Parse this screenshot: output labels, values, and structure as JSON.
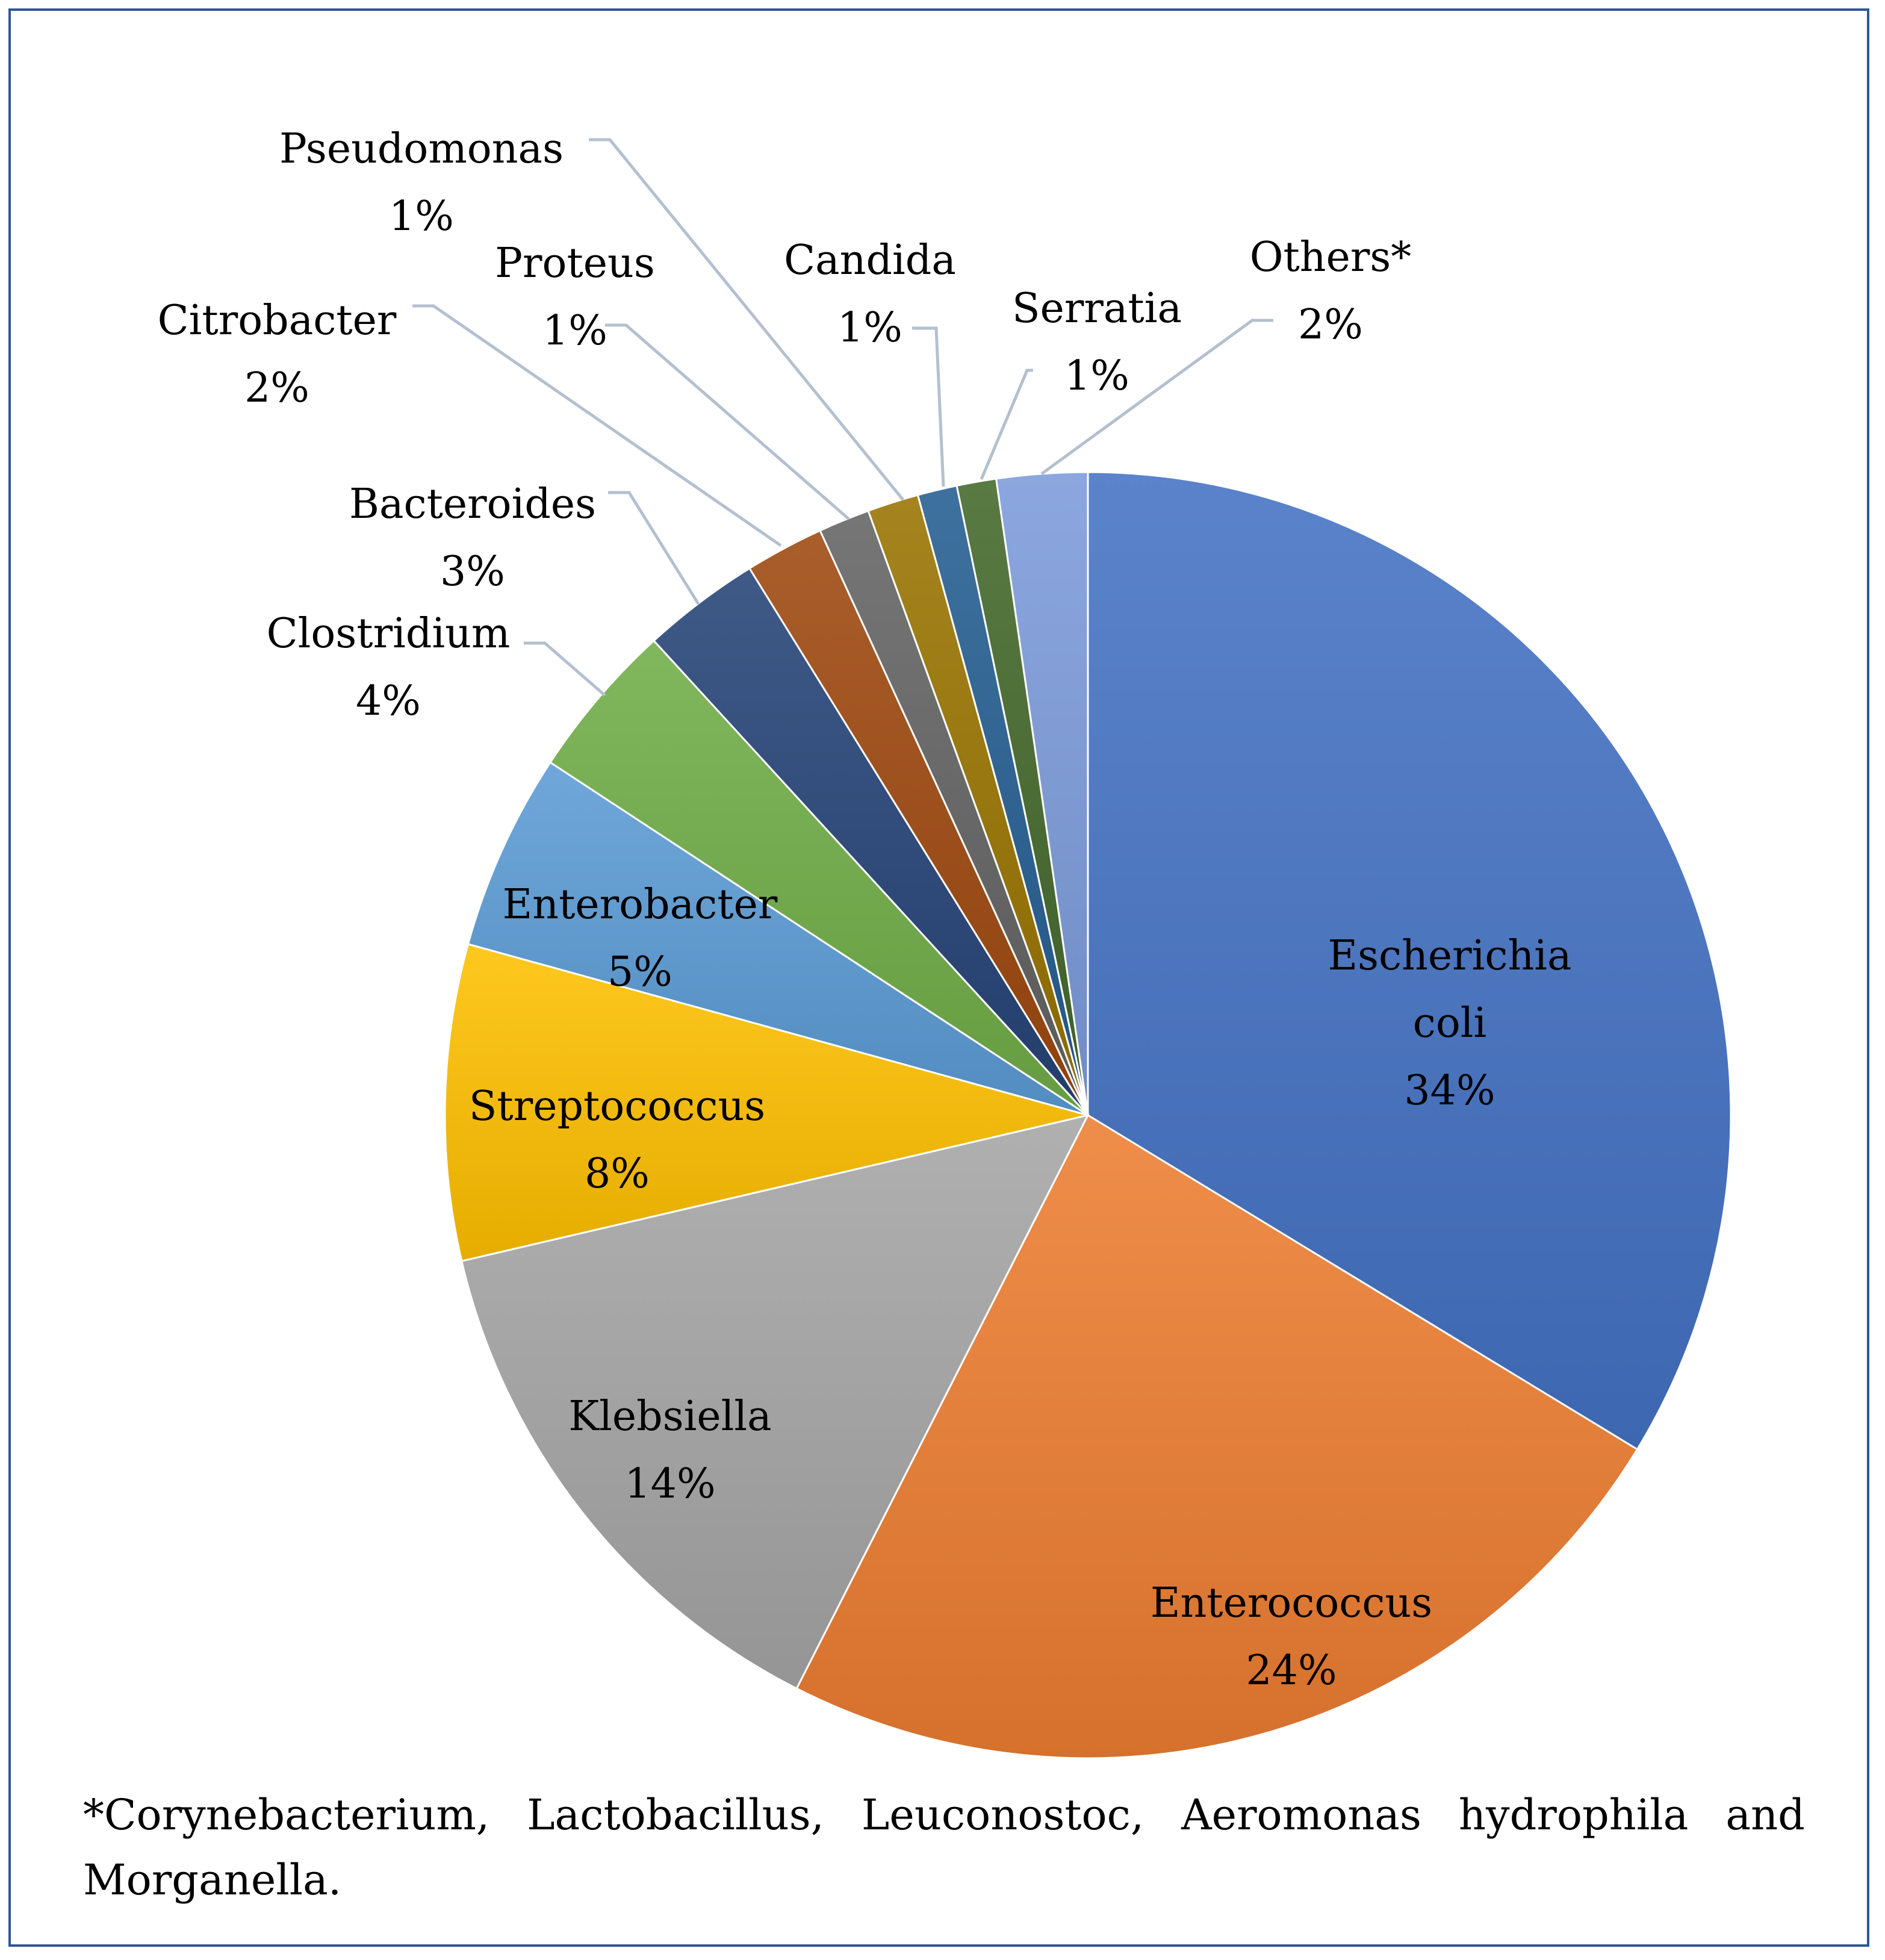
{
  "chart_data": {
    "type": "pie",
    "slices": [
      {
        "label": "Escherichia coli",
        "label_lines": [
          "Escherichia",
          "coli"
        ],
        "value": 34,
        "pct_text": "34%",
        "color": "#4472C4"
      },
      {
        "label": "Enterococcus",
        "label_lines": [
          "Enterococcus"
        ],
        "value": 24,
        "pct_text": "24%",
        "color": "#ED7D31"
      },
      {
        "label": "Klebsiella",
        "label_lines": [
          "Klebsiella"
        ],
        "value": 14,
        "pct_text": "14%",
        "color": "#A5A5A5"
      },
      {
        "label": "Streptococcus",
        "label_lines": [
          "Streptococcus"
        ],
        "value": 8,
        "pct_text": "8%",
        "color": "#FFC000"
      },
      {
        "label": "Enterobacter",
        "label_lines": [
          "Enterobacter"
        ],
        "value": 5,
        "pct_text": "5%",
        "color": "#5B9BD5"
      },
      {
        "label": "Clostridium",
        "label_lines": [
          "Clostridium"
        ],
        "value": 4,
        "pct_text": "4%",
        "color": "#70AD47"
      },
      {
        "label": "Bacteroides",
        "label_lines": [
          "Bacteroides"
        ],
        "value": 3,
        "pct_text": "3%",
        "color": "#264478"
      },
      {
        "label": "Citrobacter",
        "label_lines": [
          "Citrobacter"
        ],
        "value": 2,
        "pct_text": "2%",
        "color": "#9E480E"
      },
      {
        "label": "Proteus",
        "label_lines": [
          "Proteus"
        ],
        "value": 1.3,
        "pct_text": "1%",
        "color": "#636363"
      },
      {
        "label": "Pseudomonas",
        "label_lines": [
          "Pseudomonas"
        ],
        "value": 1.3,
        "pct_text": "1%",
        "color": "#997300"
      },
      {
        "label": "Candida",
        "label_lines": [
          "Candida"
        ],
        "value": 1,
        "pct_text": "1%",
        "color": "#255E91"
      },
      {
        "label": "Serratia",
        "label_lines": [
          "Serratia"
        ],
        "value": 1,
        "pct_text": "1%",
        "color": "#43682B"
      },
      {
        "label": "Others*",
        "label_lines": [
          "Others*"
        ],
        "value": 2.3,
        "pct_text": "2%",
        "color": "#7C9BDB"
      }
    ],
    "start_angle_deg": 0,
    "direction": "clockwise"
  },
  "footnote": "*Corynebacterium, Lactobacillus, Leuconostoc, Aeromonas hydrophila and Morganella.",
  "colors": {
    "frame_border": "#2F5597",
    "leader_line": "#B4C0CF"
  }
}
